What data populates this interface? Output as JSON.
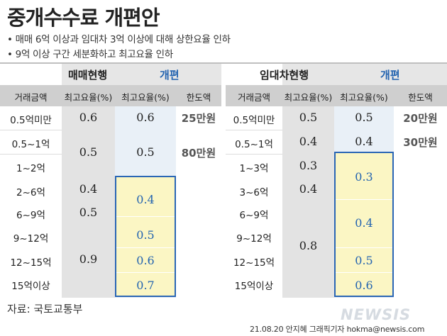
{
  "title": "중개수수료 개편안",
  "bullets": [
    "• 매매 6억 이상과 임대차 3억 이상에 대해 상한요율 인하",
    "• 9억 이상 구간 세분화하고 최고요율 인하"
  ],
  "sale": {
    "current_label": "매매현행",
    "new_label": "개편",
    "col_headers": [
      "거래금액",
      "최고요율(%)",
      "최고요율(%)",
      "한도액"
    ],
    "rows": [
      "0.5억미만",
      "0.5~1억",
      "1~2억",
      "2~6억",
      "6~9억",
      "9~12억",
      "12~15억",
      "15억이상"
    ],
    "current_rates": [
      "0.6",
      "0.5",
      "0.4",
      "0.5",
      "0.9"
    ],
    "new_rates": [
      "0.6",
      "0.5",
      "0.4",
      "0.5",
      "0.6",
      "0.7"
    ],
    "limits": [
      "25만원",
      "80만원"
    ]
  },
  "lease": {
    "current_label": "임대차현행",
    "new_label": "개편",
    "col_headers": [
      "거래금액",
      "최고요율(%)",
      "최고요율(%)",
      "한도액"
    ],
    "rows": [
      "0.5억미만",
      "0.5~1억",
      "1~3억",
      "3~6억",
      "6~9억",
      "9~12억",
      "12~15억",
      "15억이상"
    ],
    "current_rates": [
      "0.5",
      "0.4",
      "0.3",
      "0.4",
      "0.8"
    ],
    "new_rates": [
      "0.5",
      "0.4",
      "0.3",
      "0.4",
      "0.5",
      "0.6"
    ],
    "limits": [
      "20만원",
      "30만원"
    ]
  },
  "source": "자료: 국토교통부",
  "credit": "21.08.20 안지혜  그래픽기자  hokma@newsis.com",
  "logo": "NEWSIS"
}
